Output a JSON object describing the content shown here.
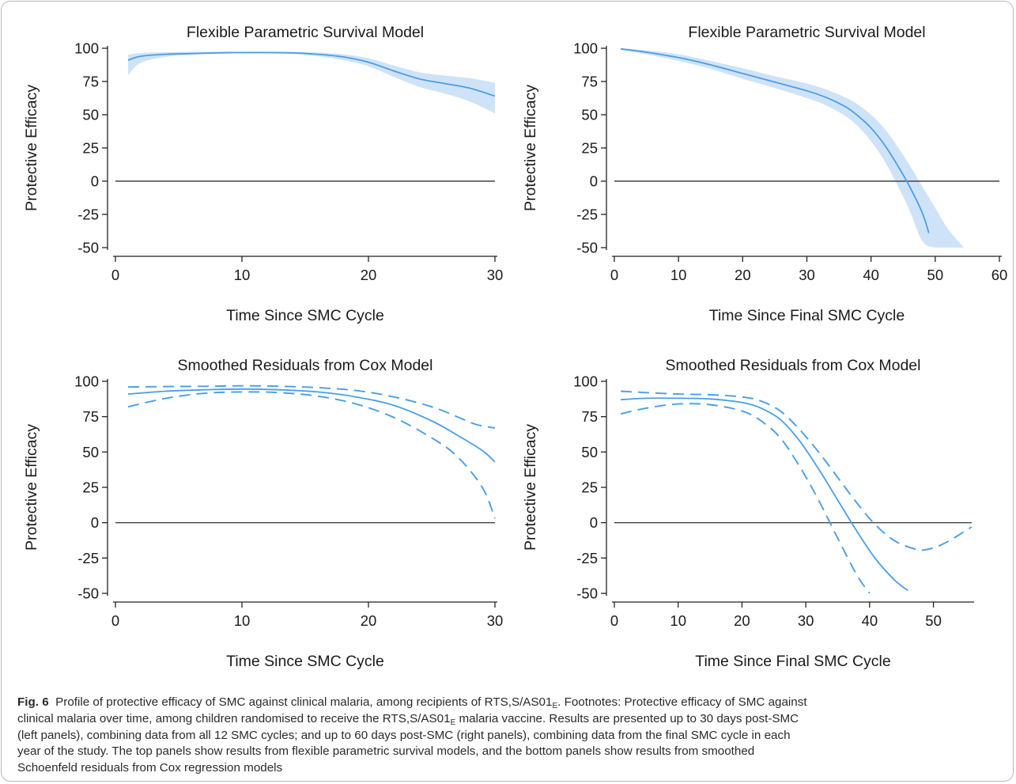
{
  "colors": {
    "line": "#4a9ee6",
    "band": "#cfe3f8",
    "zero_line": "#444444",
    "axis": "#222222"
  },
  "chart_data": [
    {
      "type": "line",
      "title": "Flexible Parametric Survival Model",
      "xlabel": "Time Since SMC Cycle",
      "ylabel": "Protective Efficacy",
      "xlim": [
        0,
        30
      ],
      "ylim": [
        -50,
        100
      ],
      "xticks": [
        0,
        10,
        20,
        30
      ],
      "yticks": [
        100,
        75,
        50,
        25,
        0,
        -25,
        -50
      ],
      "grid": false,
      "reference_line_y": 0,
      "series": [
        {
          "style": "line",
          "x": [
            1,
            2,
            4,
            6,
            8,
            10,
            12,
            14,
            16,
            18,
            20,
            22,
            24,
            26,
            28,
            30
          ],
          "y": [
            91,
            94,
            95.5,
            96,
            96.5,
            96.7,
            96.7,
            96.5,
            95.5,
            93.5,
            89.5,
            83,
            77,
            73.5,
            70,
            64
          ]
        },
        {
          "style": "band",
          "x": [
            1,
            2,
            4,
            6,
            8,
            10,
            12,
            14,
            16,
            18,
            20,
            22,
            24,
            26,
            28,
            30
          ],
          "lower": [
            80,
            89,
            93.5,
            95,
            95.8,
            96.2,
            96.2,
            95.8,
            94,
            91,
            86.5,
            78.5,
            71,
            66,
            60,
            51
          ],
          "upper": [
            95,
            96.5,
            97,
            97.3,
            97.5,
            97.5,
            97.5,
            97.3,
            96.8,
            95.5,
            92.5,
            87,
            82,
            79.5,
            77.5,
            74
          ]
        }
      ]
    },
    {
      "type": "line",
      "title": "Flexible Parametric Survival Model",
      "xlabel": "Time Since Final SMC Cycle",
      "ylabel": "Protective Efficacy",
      "xlim": [
        0,
        60
      ],
      "ylim": [
        -50,
        100
      ],
      "xticks": [
        0,
        10,
        20,
        30,
        40,
        50,
        60
      ],
      "yticks": [
        100,
        75,
        50,
        25,
        0,
        -25,
        -50
      ],
      "grid": false,
      "reference_line_y": 0,
      "series": [
        {
          "style": "line",
          "x": [
            1,
            5,
            10,
            15,
            20,
            25,
            30,
            33,
            36,
            38,
            40,
            42,
            44,
            46,
            48,
            49
          ],
          "y": [
            99.5,
            97,
            93,
            87.5,
            81,
            74.5,
            68,
            63,
            56,
            49,
            40,
            28,
            13,
            -4,
            -24,
            -39
          ]
        },
        {
          "style": "band",
          "x": [
            1,
            5,
            10,
            15,
            20,
            25,
            30,
            33,
            36,
            38,
            40,
            42,
            44,
            46,
            48,
            50,
            52,
            54.5
          ],
          "lower": [
            99,
            95.5,
            90.5,
            84.5,
            77,
            70,
            62.5,
            57,
            49,
            41,
            30,
            16,
            -2,
            -22,
            -45,
            -50,
            -50,
            -50
          ],
          "upper": [
            100,
            98.5,
            95.5,
            90.5,
            85,
            79,
            73.5,
            69,
            63,
            57.5,
            50,
            40,
            27,
            12,
            -4,
            -20,
            -36,
            -50
          ]
        }
      ]
    },
    {
      "type": "line",
      "title": "Smoothed Residuals from Cox Model",
      "xlabel": "Time Since SMC Cycle",
      "ylabel": "Protective Efficacy",
      "xlim": [
        0,
        30
      ],
      "ylim": [
        -50,
        100
      ],
      "xticks": [
        0,
        10,
        20,
        30
      ],
      "yticks": [
        100,
        75,
        50,
        25,
        0,
        -25,
        -50
      ],
      "grid": false,
      "reference_line_y": 0,
      "series": [
        {
          "style": "line",
          "x": [
            1,
            4,
            7,
            10,
            13,
            16,
            19,
            22,
            25,
            27,
            29,
            30
          ],
          "y": [
            91,
            93,
            94,
            94.5,
            94,
            92.5,
            89,
            83,
            72,
            62,
            51,
            43
          ]
        },
        {
          "style": "dashed",
          "x": [
            1,
            4,
            7,
            10,
            13,
            16,
            19,
            22,
            25,
            27,
            28.5,
            30
          ],
          "y": [
            96,
            96.3,
            96.5,
            96.8,
            96.5,
            95.5,
            93.5,
            89,
            82,
            75,
            69.5,
            67
          ]
        },
        {
          "style": "dashed",
          "x": [
            1,
            4,
            7,
            10,
            13,
            16,
            19,
            22,
            25,
            27,
            29,
            30
          ],
          "y": [
            82,
            88,
            91.5,
            92.5,
            92,
            89.5,
            84,
            74.5,
            60,
            47,
            25,
            3
          ]
        }
      ]
    },
    {
      "type": "line",
      "title": "Smoothed Residuals from Cox Model",
      "xlabel": "Time Since Final SMC Cycle",
      "ylabel": "Protective Efficacy",
      "xlim": [
        0,
        56
      ],
      "ylim": [
        -50,
        100
      ],
      "xticks": [
        0,
        10,
        20,
        30,
        40,
        50
      ],
      "yticks": [
        100,
        75,
        50,
        25,
        0,
        -25,
        -50
      ],
      "grid": false,
      "reference_line_y": 0,
      "series": [
        {
          "style": "line",
          "x": [
            1,
            5,
            10,
            15,
            20,
            23,
            26,
            29,
            32,
            35,
            38,
            41,
            44,
            46
          ],
          "y": [
            87,
            88,
            88,
            87.5,
            85,
            81,
            73,
            58,
            38,
            16,
            -6,
            -26,
            -41,
            -48
          ]
        },
        {
          "style": "dashed",
          "x": [
            1,
            5,
            10,
            15,
            20,
            23,
            26,
            29,
            32,
            35,
            38,
            41,
            44,
            47,
            49,
            52,
            56
          ],
          "y": [
            93,
            92,
            91,
            90.5,
            89,
            86,
            79,
            66,
            50,
            32,
            14,
            -2,
            -13,
            -18.5,
            -19,
            -14,
            -3
          ]
        },
        {
          "style": "dashed",
          "x": [
            1,
            5,
            10,
            15,
            20,
            23,
            26,
            29,
            32,
            35,
            38,
            40
          ],
          "y": [
            77,
            81,
            84,
            83.5,
            79,
            72,
            60,
            40,
            16,
            -11,
            -37,
            -50
          ]
        }
      ]
    }
  ],
  "caption": {
    "label": "Fig. 6",
    "line1_a": "Profile of protective efficacy of SMC against clinical malaria, among recipients of RTS,S/AS01",
    "sub": "E",
    "line1_b": ". Footnotes: Protective efficacy of SMC against",
    "line2_a": "clinical malaria over time, among children randomised to receive the RTS,S/AS01",
    "line2_b": " malaria vaccine. Results are presented up to 30 days post-SMC",
    "line3": "(left panels), combining data from all 12 SMC cycles; and up to 60 days post-SMC (right panels), combining data from the final SMC cycle in each",
    "line4": "year of the study. The top panels show results from flexible parametric survival models, and the bottom panels show results from smoothed",
    "line5": "Schoenfeld residuals from Cox regression models"
  }
}
